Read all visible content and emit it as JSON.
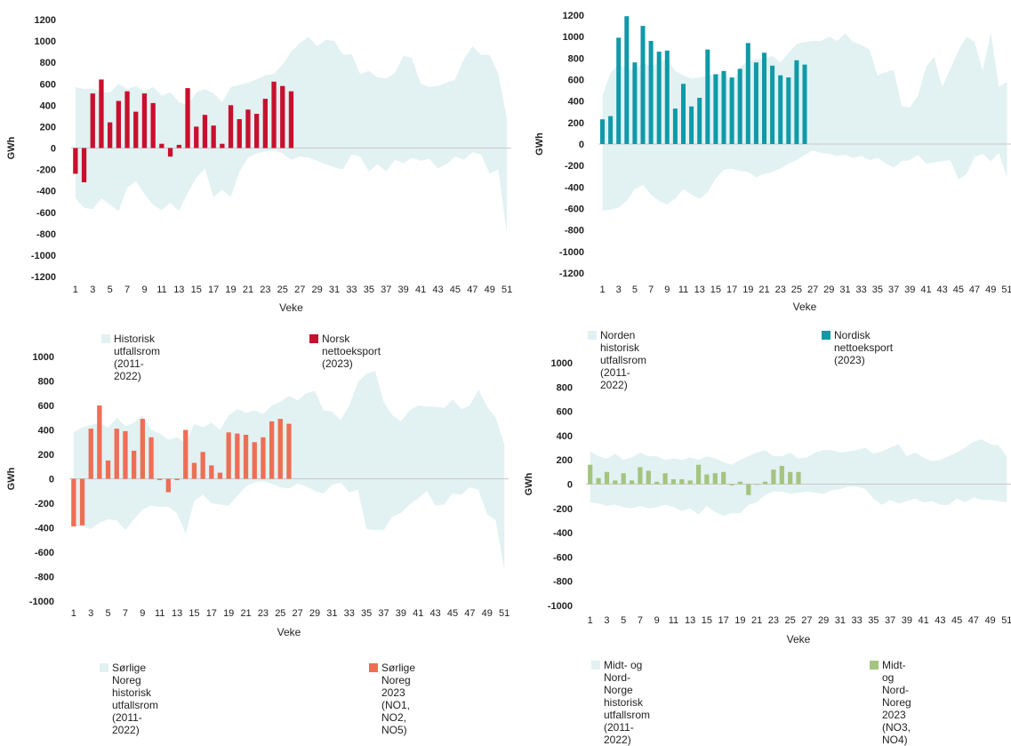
{
  "chart_data": [
    {
      "type": "bar",
      "title": "",
      "ylabel": "GWh",
      "xlabel": "Veke",
      "ylim": [
        -1200,
        1200
      ],
      "yticks": [
        -1200,
        -1000,
        -800,
        -600,
        -400,
        -200,
        0,
        200,
        400,
        600,
        800,
        1000,
        1200
      ],
      "xticks": [
        "1",
        "3",
        "5",
        "7",
        "9",
        "11",
        "13",
        "15",
        "17",
        "19",
        "21",
        "23",
        "25",
        "27",
        "29",
        "31",
        "33",
        "35",
        "37",
        "39",
        "41",
        "43",
        "45",
        "47",
        "49",
        "51"
      ],
      "range_color": "#e2f1f2",
      "bar_color": "#c8102e",
      "series": [
        {
          "name": "Historisk utfallsrom (2011-2022)",
          "type": "area-range",
          "upper": [
            570,
            550,
            560,
            520,
            520,
            600,
            550,
            580,
            530,
            570,
            490,
            520,
            430,
            400,
            520,
            550,
            510,
            430,
            570,
            590,
            610,
            640,
            680,
            690,
            780,
            900,
            980,
            1040,
            950,
            1010,
            1000,
            870,
            880,
            690,
            720,
            660,
            650,
            700,
            860,
            840,
            600,
            570,
            580,
            610,
            640,
            830,
            950,
            870,
            870,
            690,
            280
          ],
          "lower": [
            -470,
            -560,
            -570,
            -470,
            -530,
            -590,
            -370,
            -310,
            -430,
            -530,
            -580,
            -510,
            -590,
            -420,
            -280,
            -190,
            -460,
            -390,
            -460,
            -220,
            -90,
            -50,
            -30,
            -20,
            -50,
            -110,
            -80,
            -90,
            -120,
            -150,
            -180,
            -200,
            -60,
            -80,
            -220,
            -150,
            -220,
            -110,
            -140,
            -90,
            -120,
            -100,
            -190,
            -150,
            -80,
            -110,
            -40,
            -60,
            -240,
            -200,
            -800
          ]
        },
        {
          "name": "Norsk nettoeksport (2023)",
          "values": [
            -240,
            -320,
            510,
            640,
            240,
            440,
            530,
            340,
            510,
            420,
            40,
            -80,
            30,
            560,
            200,
            310,
            210,
            40,
            400,
            270,
            360,
            320,
            460,
            620,
            580,
            530
          ]
        }
      ],
      "legend": [
        "Historisk utfallsrom (2011-2022)",
        "Norsk nettoeksport (2023)"
      ]
    },
    {
      "type": "bar",
      "title": "",
      "ylabel": "GWh",
      "xlabel": "Veke",
      "ylim": [
        -1200,
        1200
      ],
      "yticks": [
        -1200,
        -1000,
        -800,
        -600,
        -400,
        -200,
        0,
        200,
        400,
        600,
        800,
        1000,
        1200
      ],
      "xticks": [
        "1",
        "3",
        "5",
        "7",
        "9",
        "11",
        "13",
        "15",
        "17",
        "19",
        "21",
        "23",
        "25",
        "27",
        "29",
        "31",
        "33",
        "35",
        "37",
        "39",
        "41",
        "43",
        "45",
        "47",
        "49",
        "51"
      ],
      "range_color": "#e2f1f2",
      "bar_color": "#0e9aa7",
      "series": [
        {
          "name": "Norden historisk utfallsrom (2011-2022)",
          "type": "area-range",
          "upper": [
            450,
            660,
            740,
            700,
            690,
            760,
            720,
            760,
            790,
            680,
            640,
            610,
            620,
            640,
            650,
            660,
            560,
            720,
            770,
            790,
            790,
            820,
            760,
            850,
            930,
            950,
            960,
            960,
            1000,
            960,
            1030,
            950,
            920,
            880,
            640,
            670,
            690,
            350,
            340,
            450,
            720,
            810,
            530,
            700,
            870,
            1000,
            950,
            680,
            1040,
            530,
            580
          ],
          "lower": [
            -620,
            -610,
            -590,
            -530,
            -420,
            -380,
            -470,
            -530,
            -560,
            -510,
            -420,
            -470,
            -510,
            -450,
            -320,
            -240,
            -230,
            -250,
            -260,
            -310,
            -280,
            -260,
            -230,
            -180,
            -150,
            -100,
            -60,
            -80,
            -90,
            -110,
            -100,
            -130,
            -110,
            -150,
            -130,
            -180,
            -220,
            -160,
            -150,
            -100,
            -180,
            -170,
            -160,
            -150,
            -330,
            -280,
            -120,
            -90,
            -160,
            -80,
            -310
          ]
        },
        {
          "name": "Nordisk nettoeksport (2023)",
          "values": [
            230,
            260,
            990,
            1190,
            760,
            1100,
            960,
            860,
            870,
            330,
            560,
            350,
            430,
            880,
            650,
            680,
            620,
            700,
            940,
            760,
            850,
            730,
            640,
            620,
            780,
            740
          ]
        }
      ],
      "legend": [
        "Norden historisk utfallsrom (2011-2022)",
        "Nordisk nettoeksport (2023)"
      ]
    },
    {
      "type": "bar",
      "title": "",
      "ylabel": "GWh",
      "xlabel": "Veke",
      "ylim": [
        -1000,
        1000
      ],
      "yticks": [
        -1000,
        -800,
        -600,
        -400,
        -200,
        0,
        200,
        400,
        600,
        800,
        1000
      ],
      "xticks": [
        "1",
        "3",
        "5",
        "7",
        "9",
        "11",
        "13",
        "15",
        "17",
        "19",
        "21",
        "23",
        "25",
        "27",
        "29",
        "31",
        "33",
        "35",
        "37",
        "39",
        "41",
        "43",
        "45",
        "47",
        "49",
        "51"
      ],
      "range_color": "#e2f1f2",
      "bar_color": "#ee6e55",
      "series": [
        {
          "name": "Sørlige Noreg historisk utfallsrom (2011-2022)",
          "type": "area-range",
          "upper": [
            380,
            420,
            440,
            460,
            420,
            500,
            430,
            460,
            520,
            400,
            370,
            320,
            340,
            290,
            450,
            420,
            460,
            400,
            520,
            570,
            540,
            560,
            530,
            600,
            630,
            680,
            640,
            700,
            720,
            560,
            550,
            480,
            600,
            790,
            860,
            880,
            630,
            520,
            470,
            560,
            600,
            590,
            590,
            580,
            650,
            570,
            600,
            730,
            590,
            500,
            280
          ],
          "lower": [
            -390,
            -390,
            -410,
            -360,
            -330,
            -340,
            -420,
            -330,
            -250,
            -220,
            -230,
            -230,
            -280,
            -450,
            -180,
            -130,
            -200,
            -210,
            -220,
            -140,
            -60,
            -30,
            -20,
            -40,
            -70,
            -80,
            -40,
            -60,
            -100,
            -120,
            -50,
            -30,
            -110,
            -90,
            -410,
            -420,
            -420,
            -310,
            -280,
            -210,
            -160,
            -100,
            -220,
            -210,
            -120,
            -130,
            -70,
            -90,
            -290,
            -340,
            -750
          ]
        },
        {
          "name": "Sørlige Noreg 2023\n(NO1, NO2, NO5)",
          "values": [
            -390,
            -380,
            410,
            600,
            150,
            410,
            390,
            230,
            490,
            340,
            -10,
            -110,
            -10,
            400,
            130,
            220,
            110,
            50,
            380,
            370,
            360,
            300,
            340,
            470,
            490,
            450
          ]
        }
      ],
      "legend": [
        "Sørlige Noreg historisk utfallsrom (2011-2022)",
        "Sørlige Noreg 2023\n(NO1, NO2, NO5)"
      ]
    },
    {
      "type": "bar",
      "title": "",
      "ylabel": "GWh",
      "xlabel": "Veke",
      "ylim": [
        -1000,
        1000
      ],
      "yticks": [
        -1000,
        -800,
        -600,
        -400,
        -200,
        0,
        200,
        400,
        600,
        800,
        1000
      ],
      "xticks": [
        "1",
        "3",
        "5",
        "7",
        "9",
        "11",
        "13",
        "15",
        "17",
        "19",
        "21",
        "23",
        "25",
        "27",
        "29",
        "31",
        "33",
        "35",
        "37",
        "39",
        "41",
        "43",
        "45",
        "47",
        "49",
        "51"
      ],
      "range_color": "#e2f1f2",
      "bar_color": "#a4c47f",
      "series": [
        {
          "name": "Midt- og Nord-Norge historisk utfallsrom (2011-2022)",
          "type": "area-range",
          "upper": [
            270,
            230,
            210,
            250,
            200,
            220,
            260,
            230,
            230,
            200,
            210,
            200,
            220,
            200,
            230,
            210,
            180,
            160,
            200,
            230,
            260,
            280,
            230,
            230,
            260,
            210,
            220,
            260,
            280,
            280,
            260,
            270,
            280,
            300,
            250,
            270,
            300,
            330,
            230,
            260,
            220,
            190,
            200,
            230,
            260,
            300,
            350,
            370,
            330,
            320,
            230
          ],
          "lower": [
            -150,
            -160,
            -180,
            -170,
            -190,
            -200,
            -180,
            -200,
            -190,
            -170,
            -190,
            -220,
            -200,
            -250,
            -180,
            -230,
            -260,
            -240,
            -240,
            -170,
            -150,
            -90,
            -60,
            -60,
            -80,
            -70,
            -60,
            -70,
            -80,
            -50,
            -40,
            -20,
            -20,
            -40,
            -120,
            -170,
            -130,
            -160,
            -140,
            -120,
            -150,
            -140,
            -170,
            -170,
            -120,
            -150,
            -110,
            -130,
            -130,
            -140,
            -150
          ]
        },
        {
          "name": "Midt- og Nord-Noreg 2023\n(NO3, NO4)",
          "values": [
            160,
            50,
            100,
            30,
            90,
            30,
            140,
            110,
            20,
            90,
            40,
            40,
            30,
            160,
            80,
            90,
            100,
            -10,
            20,
            -90,
            0,
            20,
            120,
            150,
            100,
            100
          ]
        }
      ],
      "legend": [
        "Midt- og Nord-Norge historisk utfallsrom (2011-2022)",
        "Midt- og Nord-Noreg 2023\n(NO3, NO4)"
      ]
    }
  ]
}
